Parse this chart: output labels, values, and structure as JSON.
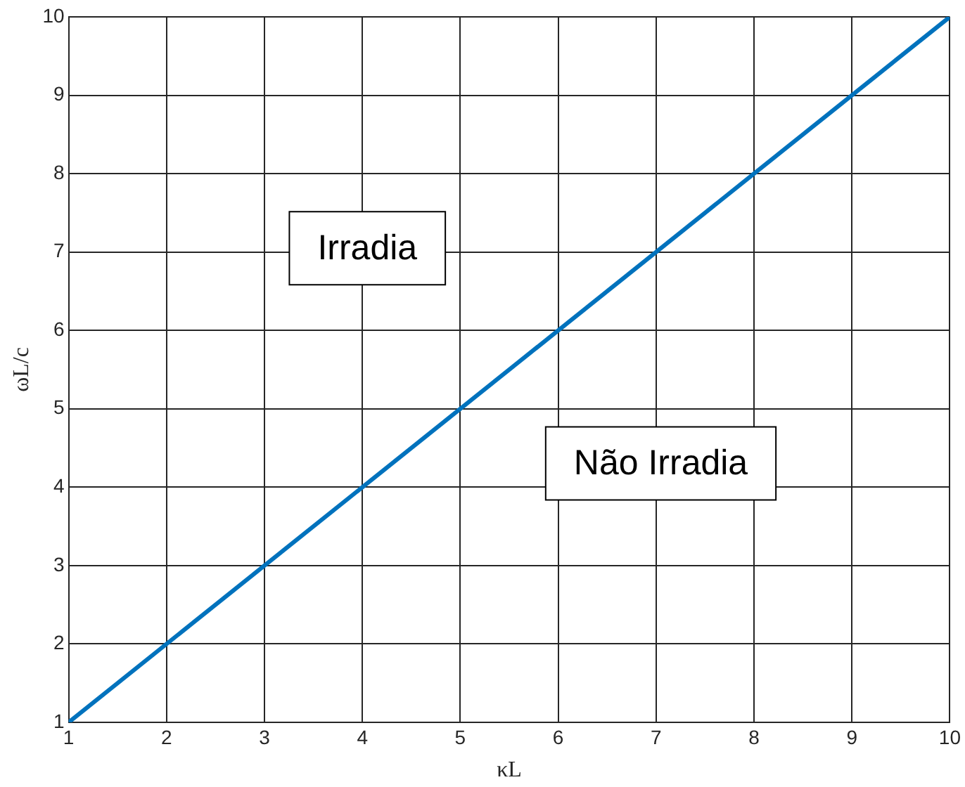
{
  "chart_data": {
    "type": "line",
    "xlabel": "κL",
    "ylabel": "ωL/c",
    "x": [
      1,
      10
    ],
    "series": [
      {
        "color": "#0072bd",
        "values": [
          1,
          10
        ]
      }
    ],
    "xlim": [
      1,
      10
    ],
    "ylim": [
      1,
      10
    ],
    "xticks": [
      1,
      2,
      3,
      4,
      5,
      6,
      7,
      8,
      9,
      10
    ],
    "yticks": [
      1,
      2,
      3,
      4,
      5,
      6,
      7,
      8,
      9,
      10
    ],
    "grid": true,
    "legend": false,
    "marker": "none",
    "line_style": "solid",
    "annotations": [
      "Irradia",
      "Não Irradia"
    ]
  }
}
